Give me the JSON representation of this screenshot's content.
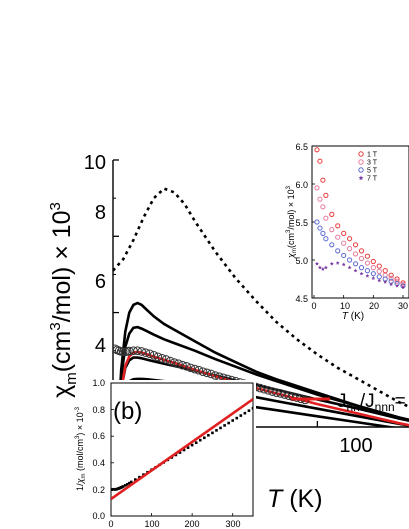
{
  "chart_data": [
    {
      "type": "line",
      "title": "",
      "ylabel": "χ_m(cm³/mol) × 10³",
      "ylabel_parts": {
        "chi": "χ",
        "sub_m": "m",
        "body": "(cm",
        "sup3": "3",
        "rest": "/mol) × 10",
        "exp3": "3"
      },
      "xlabel": "T (K)",
      "xlabel_parts": {
        "var": "T",
        "unit": " (K)"
      },
      "xlim": [
        0,
        160
      ],
      "ylim": [
        3,
        10
      ],
      "yticks": [
        "4",
        "6",
        "8",
        "10"
      ],
      "xticks": [
        "100"
      ],
      "legend": {
        "text": "J_nn/J_nnn =",
        "base": "J",
        "sub1": "nn",
        "slash": "/J",
        "sub2": "nnn",
        "eq": "=",
        "color": "#e02020",
        "placement": "right"
      },
      "series": [
        {
          "style": "dotted",
          "color": "#000000",
          "x": [
            0,
            5,
            10,
            15,
            20,
            25,
            30,
            35,
            40,
            50,
            60,
            70,
            80,
            90,
            100,
            110,
            120,
            130,
            140,
            150,
            160
          ],
          "y": [
            7.1,
            7.4,
            7.9,
            8.5,
            9.0,
            9.25,
            9.15,
            8.85,
            8.4,
            7.6,
            6.9,
            6.3,
            5.75,
            5.3,
            4.9,
            4.55,
            4.25,
            3.95,
            3.65,
            3.4,
            3.15
          ]
        },
        {
          "style": "solid",
          "color": "#000000",
          "x": [
            0,
            2,
            4,
            6,
            8,
            10,
            12,
            14,
            17,
            20,
            25,
            30,
            40,
            50,
            60,
            70,
            80,
            100,
            120,
            140,
            160
          ],
          "y": [
            0,
            2.6,
            4.5,
            5.5,
            6.0,
            6.2,
            6.25,
            6.2,
            6.05,
            5.9,
            5.7,
            5.55,
            5.25,
            4.95,
            4.7,
            4.45,
            4.25,
            3.9,
            3.55,
            3.25,
            3.0
          ]
        },
        {
          "style": "solid",
          "color": "#000000",
          "x": [
            0,
            2,
            4,
            6,
            8,
            10,
            12,
            14,
            17,
            20,
            25,
            30,
            40,
            50,
            60,
            70,
            80,
            100,
            120,
            140,
            160
          ],
          "y": [
            0,
            2.5,
            4.3,
            5.1,
            5.45,
            5.6,
            5.62,
            5.58,
            5.5,
            5.42,
            5.3,
            5.2,
            5.0,
            4.78,
            4.58,
            4.38,
            4.2,
            3.85,
            3.55,
            3.25,
            3.0
          ]
        },
        {
          "style": "solid",
          "color": "#000000",
          "x": [
            0,
            2,
            4,
            6,
            8,
            10,
            12,
            14,
            17,
            20,
            25,
            30,
            40,
            50,
            60,
            70,
            80,
            100,
            120,
            140,
            160
          ],
          "y": [
            0,
            2.4,
            4.0,
            4.55,
            4.75,
            4.82,
            4.82,
            4.8,
            4.76,
            4.72,
            4.66,
            4.6,
            4.48,
            4.35,
            4.22,
            4.1,
            3.98,
            3.72,
            3.48,
            3.22,
            3.0
          ]
        },
        {
          "style": "solid",
          "color": "#000000",
          "x": [
            0,
            2,
            4,
            6,
            8,
            10,
            12,
            14,
            17,
            20,
            25,
            30,
            40,
            50,
            60,
            70,
            80,
            100,
            120,
            140,
            160
          ],
          "y": [
            0,
            2.3,
            3.6,
            4.05,
            4.2,
            4.25,
            4.26,
            4.26,
            4.25,
            4.23,
            4.2,
            4.16,
            4.08,
            3.98,
            3.88,
            3.78,
            3.68,
            3.48,
            3.28,
            3.08,
            2.9
          ]
        },
        {
          "style": "solid",
          "color": "#000000",
          "x": [
            0,
            2,
            4,
            6,
            8,
            10,
            12,
            14,
            17,
            20,
            25,
            30,
            40,
            50,
            60,
            70,
            80,
            100,
            120,
            140,
            160
          ],
          "y": [
            0,
            2.2,
            3.3,
            3.65,
            3.78,
            3.83,
            3.85,
            3.85,
            3.85,
            3.84,
            3.82,
            3.8,
            3.75,
            3.68,
            3.6,
            3.52,
            3.44,
            3.28,
            3.12,
            2.96,
            2.8
          ]
        },
        {
          "style": "solid",
          "color": "#e02020",
          "x": [
            0,
            2,
            4,
            6,
            8,
            10,
            12,
            14,
            17,
            20,
            25,
            30,
            40,
            50,
            60,
            70,
            80,
            100,
            120,
            140,
            160
          ],
          "y": [
            0,
            2.3,
            3.95,
            4.6,
            4.85,
            4.95,
            4.97,
            4.95,
            4.9,
            4.84,
            4.76,
            4.68,
            4.5,
            4.33,
            4.17,
            4.02,
            3.88,
            3.6,
            3.35,
            3.1,
            2.88
          ]
        },
        {
          "style": "markers",
          "marker": "open-circle",
          "color": "#333333",
          "x": [
            1,
            2,
            3,
            4,
            5,
            6,
            7,
            8,
            10,
            12,
            14,
            16,
            18,
            20,
            22,
            24,
            26,
            28,
            30,
            32,
            34,
            36,
            38,
            40,
            42,
            44,
            46,
            48,
            50,
            52,
            54,
            56,
            58,
            60,
            62,
            64,
            66,
            68,
            70,
            72,
            74,
            76,
            78,
            80,
            82,
            84,
            86,
            88,
            90,
            92,
            94
          ],
          "y": [
            5.05,
            5.02,
            5.0,
            4.98,
            4.97,
            4.97,
            4.98,
            4.99,
            5.0,
            5.0,
            4.98,
            4.95,
            4.92,
            4.88,
            4.84,
            4.8,
            4.77,
            4.73,
            4.69,
            4.66,
            4.62,
            4.59,
            4.55,
            4.52,
            4.49,
            4.45,
            4.42,
            4.39,
            4.35,
            4.32,
            4.29,
            4.26,
            4.23,
            4.2,
            4.17,
            4.14,
            4.11,
            4.08,
            4.05,
            4.02,
            3.99,
            3.96,
            3.93,
            3.9,
            3.88,
            3.85,
            3.82,
            3.79,
            3.77,
            3.74,
            3.71
          ]
        }
      ]
    },
    {
      "type": "line",
      "panel_label": "(b)",
      "title": "",
      "ylabel": "1/χ_m (mol/cm³) × 10⁻³",
      "ylabel_parts": {
        "one": "1/",
        "chi": "χ",
        "sub_m": "m",
        "rest": " (mol/cm",
        "sup3": "3",
        "mult": ") × 10",
        "exp": "-3"
      },
      "xlabel": "T (K)",
      "xlabel_parts": {
        "var": "T",
        "unit": " (K)"
      },
      "xlim": [
        0,
        350
      ],
      "ylim": [
        0,
        1.0
      ],
      "xticks": [
        "0",
        "100",
        "200",
        "300"
      ],
      "yticks": [
        "0.0",
        "0.2",
        "0.4",
        "0.6",
        "0.8",
        "1.0"
      ],
      "series": [
        {
          "style": "markers",
          "marker": "square",
          "color": "#000000",
          "x": [
            2,
            4,
            6,
            8,
            10,
            12,
            14,
            16,
            18,
            20,
            22,
            24,
            26,
            28,
            30,
            35,
            40,
            45,
            50,
            60,
            70,
            80,
            90,
            100,
            110,
            120,
            130,
            140,
            150,
            160,
            170,
            180,
            190,
            200,
            210,
            220,
            230,
            240,
            250,
            260,
            270,
            280,
            290,
            300,
            310,
            320,
            330,
            340,
            350
          ],
          "y": [
            0.198,
            0.2,
            0.201,
            0.201,
            0.2,
            0.2,
            0.202,
            0.204,
            0.206,
            0.208,
            0.211,
            0.213,
            0.216,
            0.219,
            0.222,
            0.23,
            0.238,
            0.247,
            0.256,
            0.274,
            0.292,
            0.311,
            0.329,
            0.348,
            0.366,
            0.385,
            0.403,
            0.422,
            0.44,
            0.459,
            0.477,
            0.496,
            0.514,
            0.533,
            0.551,
            0.57,
            0.588,
            0.607,
            0.625,
            0.644,
            0.662,
            0.681,
            0.699,
            0.718,
            0.736,
            0.755,
            0.773,
            0.792,
            0.81
          ]
        },
        {
          "style": "solid",
          "color": "#e02020",
          "x": [
            0,
            350
          ],
          "y": [
            0.128,
            0.878
          ]
        }
      ]
    },
    {
      "type": "scatter",
      "title": "",
      "ylabel": "χ_m(cm³/mol) × 10³",
      "ylabel_parts": {
        "chi": "χ",
        "sub_m": "m",
        "body": "(cm",
        "sup3": "3",
        "rest": "/mol) × 10",
        "exp3": "3"
      },
      "xlabel": "T (K)",
      "xlabel_parts": {
        "var": "T",
        "unit": " (K)"
      },
      "xlim": [
        0,
        30
      ],
      "ylim": [
        4.5,
        6.5
      ],
      "xticks": [
        "0",
        "10",
        "20",
        "30"
      ],
      "yticks": [
        "4.5",
        "5.0",
        "5.5",
        "6.0",
        "6.5"
      ],
      "legend_placement": "top",
      "series": [
        {
          "name": "1 T",
          "color": "#e83a3a",
          "marker": "open-circle",
          "x": [
            1,
            2,
            3,
            4,
            6,
            8,
            10,
            12,
            14,
            16,
            18,
            20,
            22,
            24,
            26,
            28,
            30
          ],
          "y": [
            6.45,
            6.3,
            6.05,
            5.85,
            5.6,
            5.45,
            5.35,
            5.28,
            5.2,
            5.12,
            5.05,
            4.98,
            4.92,
            4.86,
            4.8,
            4.75,
            4.7
          ]
        },
        {
          "name": "3 T",
          "color": "#e57a9a",
          "marker": "open-circle",
          "x": [
            1,
            2,
            3,
            4,
            6,
            8,
            10,
            12,
            14,
            16,
            18,
            20,
            22,
            24,
            26,
            28,
            30
          ],
          "y": [
            5.95,
            5.8,
            5.7,
            5.55,
            5.4,
            5.3,
            5.22,
            5.15,
            5.08,
            5.02,
            4.96,
            4.9,
            4.85,
            4.8,
            4.76,
            4.72,
            4.68
          ]
        },
        {
          "name": "5 T",
          "color": "#5a6ad0",
          "marker": "open-circle",
          "x": [
            1,
            2,
            3,
            4,
            6,
            8,
            10,
            12,
            14,
            16,
            18,
            20,
            22,
            24,
            26,
            28,
            30
          ],
          "y": [
            5.5,
            5.42,
            5.35,
            5.28,
            5.2,
            5.12,
            5.06,
            5.0,
            4.95,
            4.9,
            4.86,
            4.82,
            4.78,
            4.75,
            4.72,
            4.69,
            4.66
          ]
        },
        {
          "name": "7 T",
          "color": "#7a3aa0",
          "marker": "star",
          "x": [
            1,
            2,
            3,
            4,
            6,
            8,
            10,
            12,
            14,
            16,
            18,
            20,
            22,
            24,
            26,
            28,
            30
          ],
          "y": [
            4.95,
            4.9,
            4.88,
            4.9,
            4.95,
            4.96,
            4.94,
            4.9,
            4.86,
            4.82,
            4.79,
            4.76,
            4.73,
            4.71,
            4.68,
            4.66,
            4.64
          ]
        }
      ]
    }
  ]
}
